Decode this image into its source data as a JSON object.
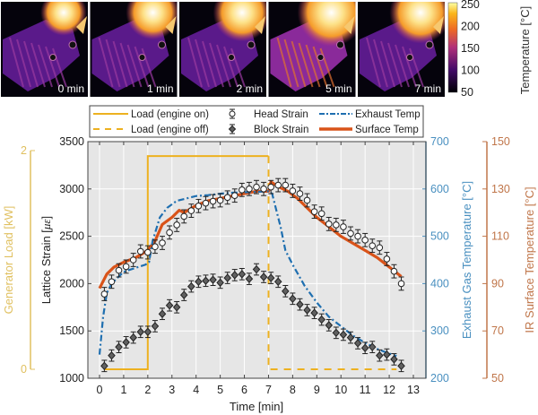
{
  "thermal_images": {
    "frames": [
      {
        "label": "0 min",
        "heat": 0.35
      },
      {
        "label": "1 min",
        "heat": 0.55
      },
      {
        "label": "2 min",
        "heat": 0.65
      },
      {
        "label": "5 min",
        "heat": 0.9
      },
      {
        "label": "7 min",
        "heat": 0.75
      }
    ],
    "colorbar": {
      "ticks": [
        "250",
        "200",
        "150",
        "100",
        "50"
      ],
      "label": "Temperature [°C]",
      "range": [
        50,
        250
      ]
    }
  },
  "colors": {
    "load": "#EDB120",
    "head_strain_marker": "#ffffff",
    "block_strain_marker": "#606060",
    "exhaust": "#1f6fb0",
    "surface": "#D95319",
    "exhaust_axis": "#4a90c0",
    "surface_axis": "#c0764a",
    "load_axis": "#e0c060",
    "plot_bg": "#e6e6e6"
  },
  "chart_data": {
    "type": "line",
    "xlabel": "Time [min]",
    "xlim": [
      -0.5,
      13.5
    ],
    "x_ticks": [
      "0",
      "1",
      "2",
      "3",
      "4",
      "5",
      "6",
      "7",
      "8",
      "9",
      "10",
      "11",
      "12",
      "13"
    ],
    "grid": true,
    "legend": {
      "placement": "top",
      "entries": [
        {
          "label": "Load (engine on)",
          "style": "solid-load"
        },
        {
          "label": "Load (engine off)",
          "style": "dashed-load"
        },
        {
          "label": "Head Strain",
          "style": "open-circle"
        },
        {
          "label": "Block Strain",
          "style": "filled-diamond"
        },
        {
          "label": "Exhaust Temp",
          "style": "dashdot-exhaust"
        },
        {
          "label": "Surface Temp",
          "style": "thick-surface"
        }
      ]
    },
    "axes": {
      "strain": {
        "label": "Lattice Strain [με]",
        "label_main": "Lattice Strain [",
        "label_unit": "με",
        "label_end": "]",
        "lim": [
          1000,
          3500
        ],
        "ticks": [
          "1000",
          "1500",
          "2000",
          "2500",
          "3000",
          "3500"
        ]
      },
      "load": {
        "label": "Generator Load [kW]",
        "lim": [
          -0.05,
          2.05
        ],
        "ticks": [
          "0",
          "2"
        ]
      },
      "exhaust": {
        "label": "Exhaust Gas Temperature [°C]",
        "lim": [
          200,
          700
        ],
        "ticks": [
          "200",
          "300",
          "400",
          "500",
          "600",
          "700"
        ]
      },
      "surface": {
        "label": "IR Surface Temperature [°C]",
        "lim": [
          50,
          150
        ],
        "ticks": [
          "50",
          "70",
          "90",
          "110",
          "130",
          "150"
        ]
      }
    },
    "series": [
      {
        "name": "Head Strain",
        "axis": "strain",
        "error": 70,
        "x": [
          0.2,
          0.5,
          0.8,
          1.1,
          1.4,
          1.7,
          2.0,
          2.3,
          2.6,
          2.9,
          3.2,
          3.5,
          3.8,
          4.1,
          4.4,
          4.7,
          5.0,
          5.3,
          5.6,
          5.9,
          6.2,
          6.5,
          6.8,
          7.1,
          7.4,
          7.7,
          8.0,
          8.3,
          8.6,
          8.9,
          9.2,
          9.5,
          9.8,
          10.1,
          10.4,
          10.7,
          11.0,
          11.3,
          11.6,
          11.9,
          12.2,
          12.5
        ],
        "y": [
          1890,
          2020,
          2140,
          2180,
          2250,
          2340,
          2330,
          2390,
          2430,
          2540,
          2620,
          2710,
          2770,
          2820,
          2850,
          2870,
          2880,
          2910,
          2930,
          2990,
          3000,
          3020,
          3000,
          3020,
          3040,
          3040,
          2980,
          2950,
          2880,
          2760,
          2740,
          2630,
          2620,
          2600,
          2530,
          2500,
          2460,
          2400,
          2380,
          2260,
          2130,
          2000
        ]
      },
      {
        "name": "Block Strain",
        "axis": "strain",
        "error": 60,
        "x": [
          0.2,
          0.5,
          0.8,
          1.1,
          1.4,
          1.7,
          2.0,
          2.3,
          2.6,
          2.9,
          3.2,
          3.5,
          3.8,
          4.1,
          4.4,
          4.7,
          5.0,
          5.3,
          5.6,
          5.9,
          6.2,
          6.5,
          6.8,
          7.1,
          7.4,
          7.7,
          8.0,
          8.3,
          8.6,
          8.9,
          9.2,
          9.5,
          9.8,
          10.1,
          10.4,
          10.7,
          11.0,
          11.3,
          11.6,
          11.9,
          12.2,
          12.5
        ],
        "y": [
          1130,
          1240,
          1330,
          1380,
          1430,
          1490,
          1490,
          1550,
          1680,
          1770,
          1750,
          1880,
          1970,
          2020,
          2030,
          2040,
          2010,
          2060,
          2090,
          2100,
          2050,
          2150,
          2070,
          2060,
          2020,
          1920,
          1840,
          1780,
          1720,
          1690,
          1620,
          1560,
          1480,
          1460,
          1430,
          1370,
          1320,
          1330,
          1240,
          1250,
          1200,
          1130
        ]
      },
      {
        "name": "Exhaust Temp",
        "axis": "exhaust",
        "x": [
          0.0,
          0.15,
          0.3,
          0.5,
          0.8,
          1.0,
          1.3,
          1.6,
          1.9,
          2.05,
          2.2,
          2.5,
          2.8,
          3.2,
          3.6,
          4.0,
          4.5,
          5.0,
          5.5,
          6.0,
          6.5,
          7.0,
          7.15,
          7.3,
          7.5,
          7.7,
          8.0,
          8.5,
          9.0,
          9.5,
          10.0,
          10.5,
          11.0,
          11.5,
          12.0,
          12.3
        ],
        "y": [
          250,
          330,
          380,
          400,
          415,
          425,
          430,
          435,
          440,
          445,
          490,
          540,
          560,
          575,
          580,
          585,
          587,
          590,
          592,
          593,
          594,
          595,
          590,
          560,
          520,
          470,
          440,
          395,
          360,
          330,
          310,
          290,
          275,
          262,
          252,
          247
        ]
      },
      {
        "name": "Surface Temp",
        "axis": "surface",
        "x": [
          0.0,
          0.3,
          0.6,
          1.0,
          1.5,
          2.0,
          2.3,
          2.6,
          3.0,
          3.3,
          3.5,
          4.0,
          4.5,
          5.0,
          5.5,
          6.0,
          6.5,
          7.0,
          7.1,
          7.4,
          7.8,
          8.2,
          8.6,
          9.0,
          9.5,
          10.0,
          10.5,
          11.0,
          11.5,
          12.0,
          12.5
        ],
        "y": [
          88,
          94,
          97,
          99,
          101,
          104,
          108,
          115,
          118,
          121,
          120,
          123,
          125,
          126,
          127,
          128,
          129,
          129,
          133,
          131,
          129,
          126,
          122,
          118,
          114,
          110,
          107,
          104,
          101,
          97,
          93
        ]
      },
      {
        "name": "Load (engine on)",
        "axis": "load",
        "x": [
          0.2,
          2.0,
          2.0,
          7.0
        ],
        "y": [
          0,
          0,
          1.95,
          1.95
        ]
      },
      {
        "name": "Load (engine off)",
        "axis": "load",
        "x": [
          7.0,
          7.0,
          12.3
        ],
        "y": [
          1.95,
          0,
          0
        ]
      }
    ]
  }
}
